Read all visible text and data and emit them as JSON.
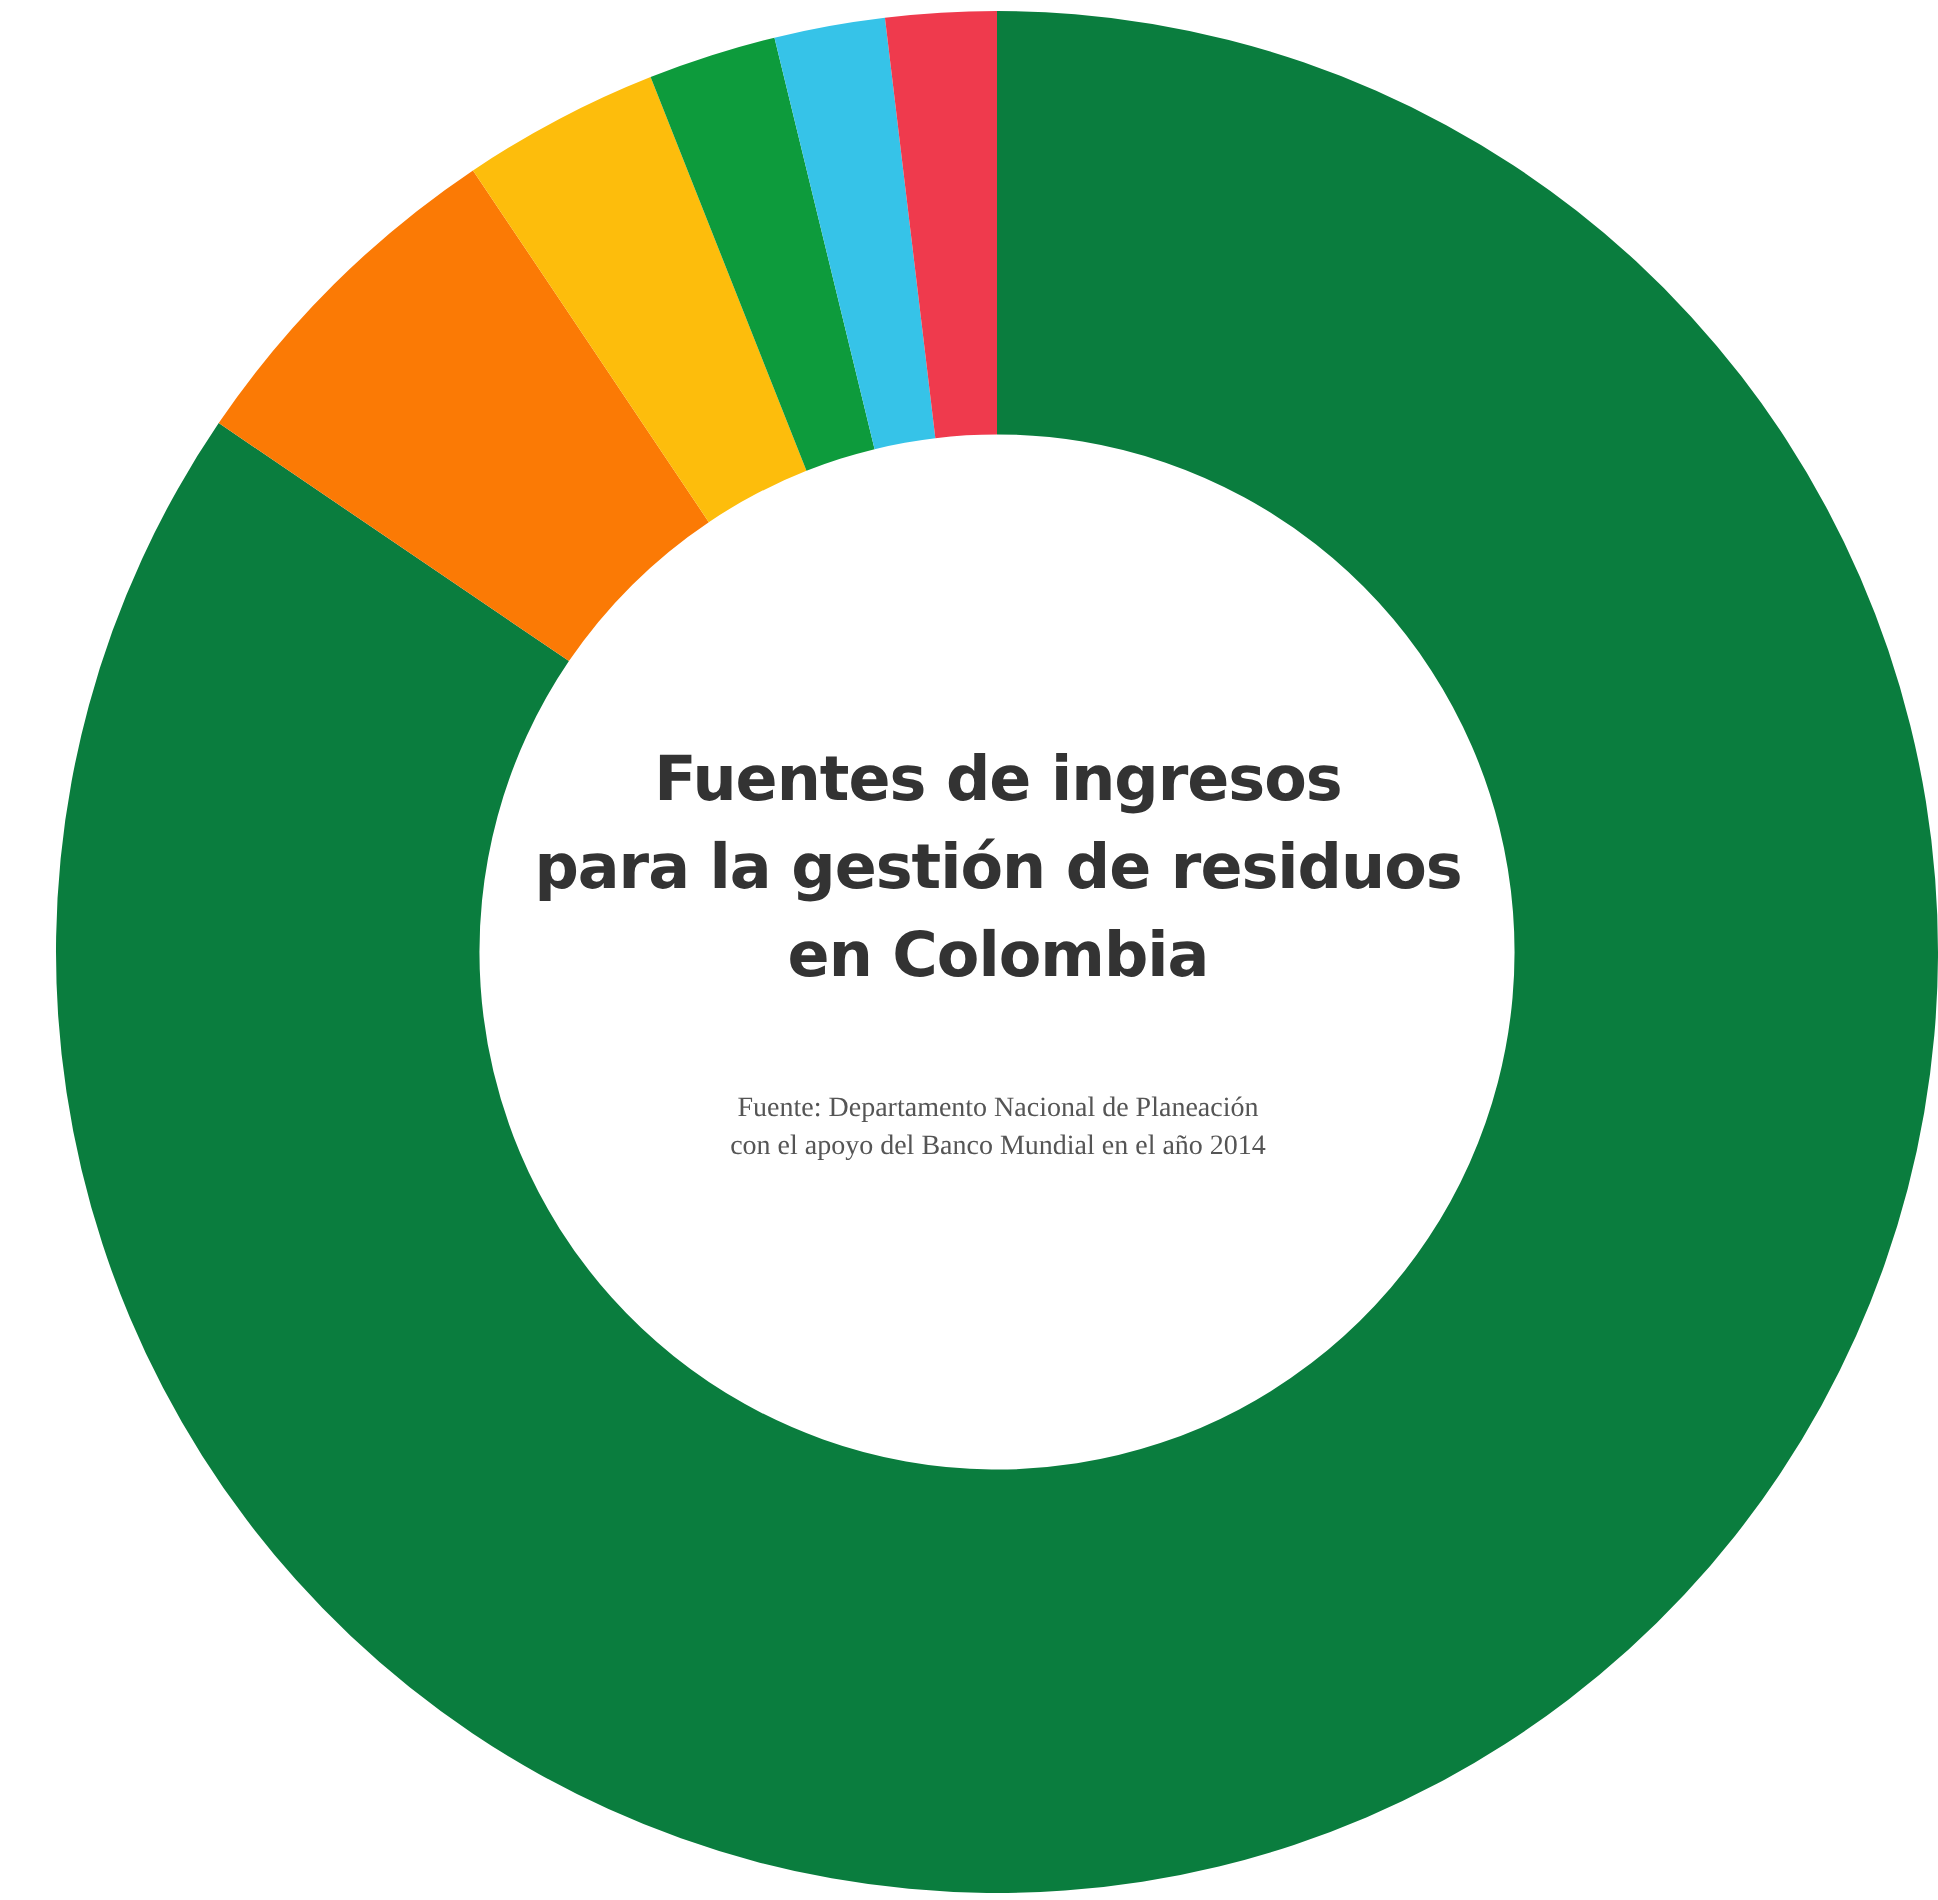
{
  "chart_data": {
    "type": "donut",
    "title": "Fuentes de ingresos\npara la gestión de residuos\nen Colombia",
    "annotations": [
      "Fuente: Departamento Nacional de Planeación\ncon el apoyo del Banco Mundial en el año 2014"
    ],
    "categories": [
      null,
      null,
      null,
      null,
      null,
      null
    ],
    "values": [
      84.5,
      6.1,
      3.4,
      2.2,
      1.9,
      1.9
    ],
    "colors": [
      "#0a7d3e",
      "#fb7a05",
      "#fdbd0c",
      "#0d9b3c",
      "#36c3e8",
      "#ef3a4d"
    ],
    "legend": false
  }
}
